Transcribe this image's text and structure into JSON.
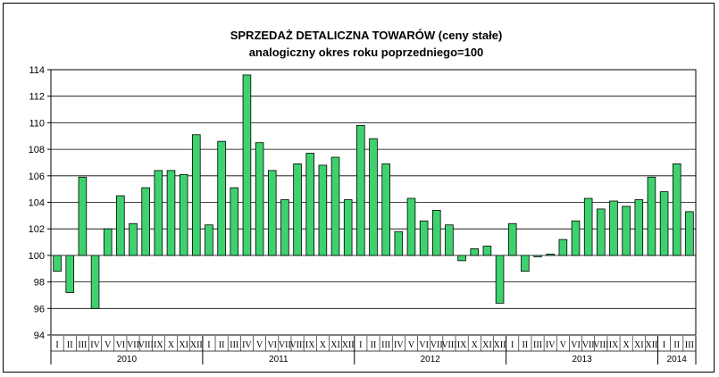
{
  "chart_data": {
    "type": "bar",
    "title": "SPRZEDAŻ DETALICZNA TOWARÓW  (ceny stałe)",
    "subtitle": "analogiczny okres roku poprzedniego=100",
    "baseline": 100,
    "ylim": [
      94,
      114
    ],
    "yticks": [
      "94",
      "96",
      "98",
      "100",
      "102",
      "104",
      "106",
      "108",
      "110",
      "112",
      "114"
    ],
    "grid": true,
    "bar_color": "#3ED26F",
    "months": [
      "I",
      "II",
      "III",
      "IV",
      "V",
      "VI",
      "VII",
      "VIII",
      "IX",
      "X",
      "XI",
      "XII"
    ],
    "years": [
      {
        "label": "2010",
        "values": [
          98.8,
          97.2,
          105.9,
          96.0,
          102.0,
          104.5,
          102.4,
          105.1,
          106.4,
          106.4,
          106.1,
          109.1
        ]
      },
      {
        "label": "2011",
        "values": [
          102.3,
          108.6,
          105.1,
          113.6,
          108.5,
          106.4,
          104.2,
          106.9,
          107.7,
          106.8,
          107.4,
          104.2
        ]
      },
      {
        "label": "2012",
        "values": [
          109.8,
          108.8,
          106.9,
          101.8,
          104.3,
          102.6,
          103.4,
          102.3,
          99.6,
          100.5,
          100.7,
          96.4
        ]
      },
      {
        "label": "2013",
        "values": [
          102.4,
          98.8,
          99.9,
          100.1,
          101.2,
          102.6,
          104.3,
          103.5,
          104.1,
          103.7,
          104.2,
          105.9
        ]
      },
      {
        "label": "2014",
        "values": [
          104.8,
          106.9,
          103.3
        ]
      }
    ]
  }
}
